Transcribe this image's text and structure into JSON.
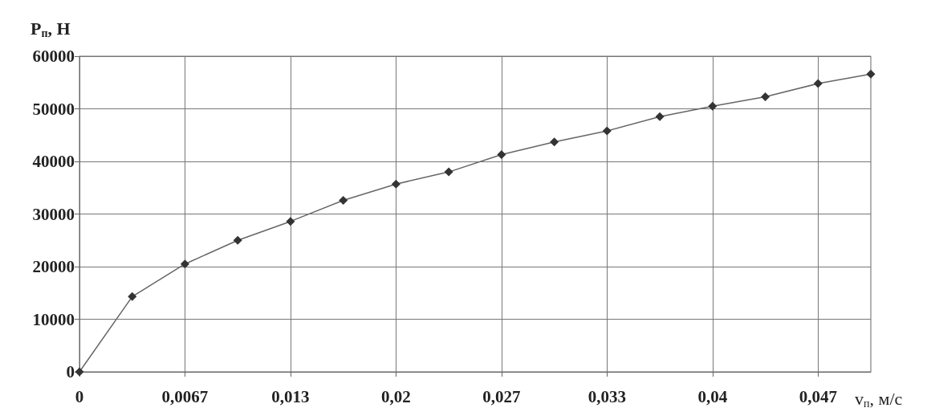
{
  "chart_data": {
    "type": "line",
    "xlabel": "v$_{п}$, м/с",
    "ylabel": "P$_{п}$, Н",
    "categories": [
      "0",
      null,
      "0,0067",
      null,
      "0,013",
      null,
      "0,02",
      null,
      "0,027",
      null,
      "0,033",
      null,
      "0,04",
      null,
      "0,047",
      null
    ],
    "series": [
      {
        "color": "#333333",
        "values": [
          0,
          14300,
          20500,
          25000,
          28600,
          32600,
          35700,
          38000,
          41300,
          43700,
          45800,
          48500,
          50500,
          52300,
          54800,
          56600
        ]
      }
    ],
    "ylim": [
      0,
      60000
    ],
    "yticks": [
      0,
      10000,
      20000,
      30000,
      40000,
      50000,
      60000
    ],
    "grid": true,
    "marker": "diamond",
    "line_style": "solid"
  }
}
